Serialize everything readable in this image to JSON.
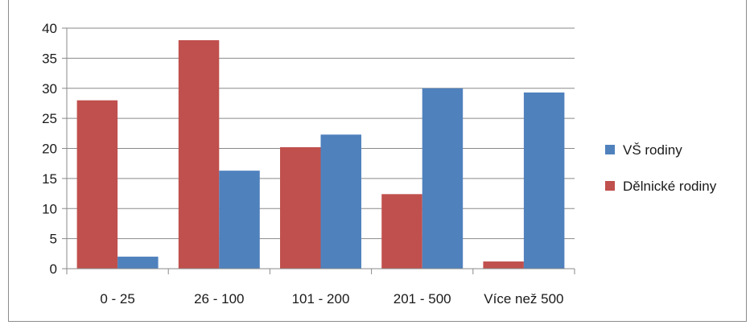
{
  "chart_data": {
    "type": "bar",
    "categories": [
      "0 - 25",
      "26 - 100",
      "101 - 200",
      "201 - 500",
      "Více než 500"
    ],
    "series": [
      {
        "name": "Dělnické rodiny",
        "color": "#c0504d",
        "values": [
          28,
          38,
          20.2,
          12.4,
          1.2
        ]
      },
      {
        "name": "VŠ rodiny",
        "color": "#4f81bd",
        "values": [
          2,
          16.3,
          22.3,
          30,
          29.3
        ]
      }
    ],
    "ylim": [
      0,
      40
    ],
    "yticks": [
      0,
      5,
      10,
      15,
      20,
      25,
      30,
      35,
      40
    ],
    "grid": true,
    "legend_position": "right",
    "legend_order": [
      "VŠ rodiny",
      "Dělnické rodiny"
    ]
  }
}
